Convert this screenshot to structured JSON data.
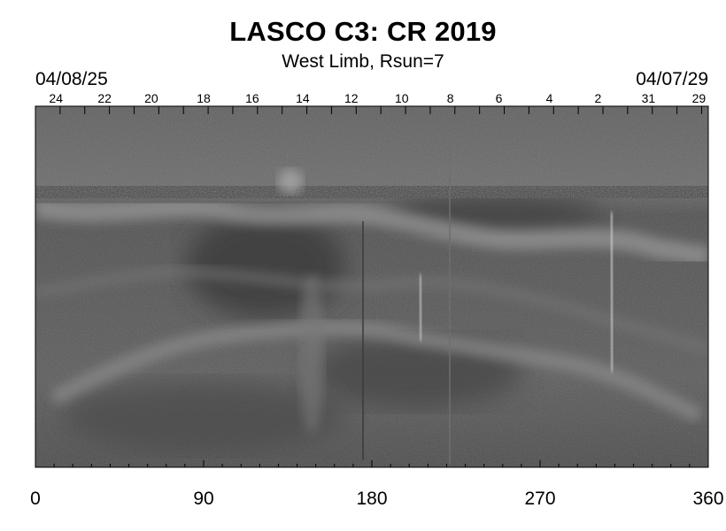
{
  "figure": {
    "title": "LASCO C3: CR 2019",
    "subtitle": "West Limb, Rsun=7",
    "date_left": "04/08/25",
    "date_right": "04/07/29"
  },
  "top_axis": {
    "labels": [
      {
        "text": "24",
        "lon": 11
      },
      {
        "text": "22",
        "lon": 37
      },
      {
        "text": "20",
        "lon": 62
      },
      {
        "text": "18",
        "lon": 90
      },
      {
        "text": "16",
        "lon": 116
      },
      {
        "text": "14",
        "lon": 143
      },
      {
        "text": "12",
        "lon": 169
      },
      {
        "text": "10",
        "lon": 196
      },
      {
        "text": "8",
        "lon": 222
      },
      {
        "text": "6",
        "lon": 248
      },
      {
        "text": "4",
        "lon": 275
      },
      {
        "text": "2",
        "lon": 301
      },
      {
        "text": "31",
        "lon": 328
      },
      {
        "text": "29",
        "lon": 355
      }
    ]
  },
  "chart_data": {
    "type": "heatmap",
    "colormap": "grayscale",
    "xlim": [
      0,
      360
    ],
    "x_ticks": [
      0,
      90,
      180,
      270,
      360
    ],
    "x_tick_labels": [
      "0",
      "90",
      "180",
      "270",
      "360"
    ],
    "xlabel": "",
    "ylabel": ""
  }
}
